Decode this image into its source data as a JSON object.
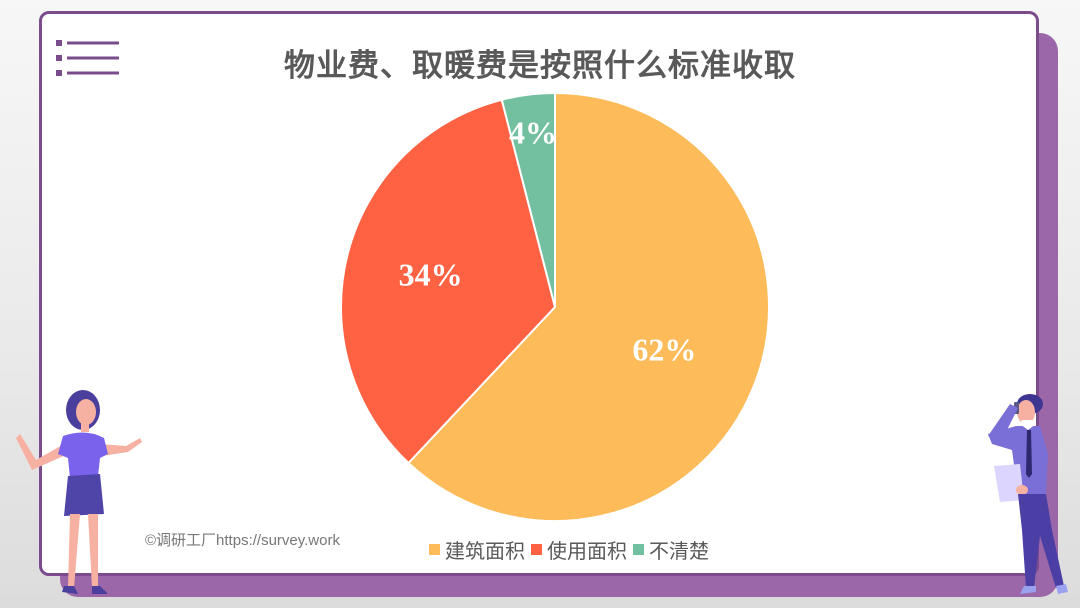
{
  "title": "物业费、取暖费是按照什么标准收取",
  "watermark": "©调研工厂https://survey.work",
  "colors": {
    "card_border": "#7a4c8c",
    "card_shadow": "#9b67a8",
    "title_text": "#595959"
  },
  "legend": [
    {
      "label": "建筑面积",
      "color": "#fdbb59"
    },
    {
      "label": "使用面积",
      "color": "#fe6243"
    },
    {
      "label": "不清楚",
      "color": "#72c09f"
    }
  ],
  "chart_data": {
    "type": "pie",
    "title": "物业费、取暖费是按照什么标准收取",
    "categories": [
      "建筑面积",
      "使用面积",
      "不清楚"
    ],
    "values": [
      62,
      34,
      4
    ],
    "unit": "%",
    "colors": [
      "#fdbb59",
      "#fe6243",
      "#72c09f"
    ],
    "data_labels": [
      "62%",
      "34%",
      "4%"
    ],
    "start_angle": "12 o'clock, clockwise",
    "legend_position": "bottom"
  },
  "decorations": {
    "menu_icon": "list-icon",
    "left_figure": "woman-presenting-illustration",
    "right_figure": "man-on-phone-illustration"
  }
}
